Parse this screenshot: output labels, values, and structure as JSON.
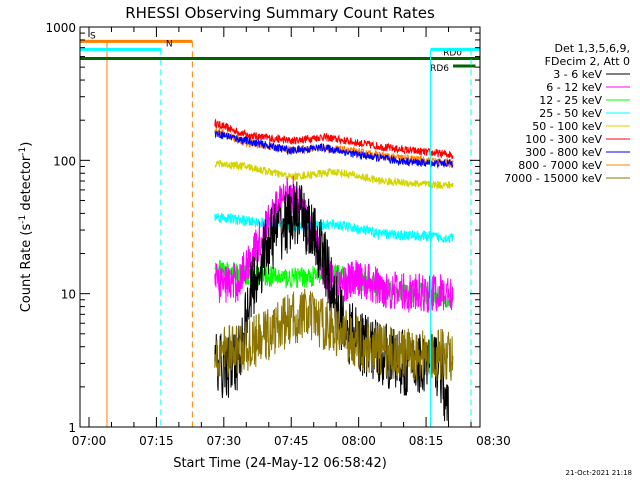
{
  "chart_data": {
    "type": "line",
    "title": "RHESSI Observing Summary Count Rates",
    "xlabel": "Start Time (24-May-12 06:58:42)",
    "ylabel": "Count Rate (s⁻¹ detector⁻¹)",
    "ylabel_main": "Count Rate (s",
    "ylabel_sup1": "-1",
    "ylabel_mid": " detector",
    "ylabel_sup2": "-1",
    "ylabel_end": ")",
    "y_scale": "log",
    "ylim": [
      1,
      1000
    ],
    "y_ticks": [
      1,
      10,
      100,
      1000
    ],
    "y_tick_labels": [
      "1",
      "10",
      "100",
      "1000"
    ],
    "xlim_min": [
      -2,
      87
    ],
    "x_ticks_min": [
      0,
      15,
      30,
      45,
      60,
      75,
      90
    ],
    "x_tick_labels": [
      "07:00",
      "07:15",
      "07:30",
      "07:45",
      "08:00",
      "08:15",
      "08:30"
    ],
    "timestamp": "21-Oct-2021 21:18",
    "legend": {
      "header1": "Det 1,3,5,6,9,",
      "header2": "FDecim 2, Att 0",
      "placement": "right"
    },
    "series": [
      {
        "name": "3 - 6 keV",
        "color": "#000000"
      },
      {
        "name": "6 - 12 keV",
        "color": "#ff00ff"
      },
      {
        "name": "12 - 25 keV",
        "color": "#00ff00"
      },
      {
        "name": "25 - 50 keV",
        "color": "#00ffff"
      },
      {
        "name": "50 - 100 keV",
        "color": "#d4d400"
      },
      {
        "name": "100 - 300 keV",
        "color": "#ff0000"
      },
      {
        "name": "300 - 800 keV",
        "color": "#0000ff"
      },
      {
        "name": "800 - 7000 keV",
        "color": "#ff8000"
      },
      {
        "name": "7000 - 15000 keV",
        "color": "#8b7500"
      }
    ],
    "curves": [
      {
        "color": "#ff0000",
        "noise": 0.03,
        "x": [
          28,
          35,
          45,
          52,
          60,
          68,
          75,
          81
        ],
        "y": [
          190,
          155,
          140,
          150,
          135,
          122,
          115,
          110
        ]
      },
      {
        "color": "#ff8000",
        "noise": 0.03,
        "x": [
          28,
          35,
          45,
          52,
          60,
          68,
          75,
          81
        ],
        "y": [
          170,
          135,
          120,
          125,
          115,
          105,
          100,
          95
        ]
      },
      {
        "color": "#0000ff",
        "noise": 0.03,
        "x": [
          28,
          35,
          45,
          52,
          60,
          68,
          75,
          81
        ],
        "y": [
          160,
          140,
          118,
          125,
          110,
          100,
          95,
          95
        ]
      },
      {
        "color": "#d4d400",
        "noise": 0.03,
        "x": [
          28,
          35,
          45,
          55,
          65,
          75,
          81
        ],
        "y": [
          95,
          90,
          75,
          82,
          70,
          66,
          65
        ]
      },
      {
        "color": "#00ffff",
        "noise": 0.04,
        "x": [
          28,
          35,
          45,
          55,
          65,
          75,
          81
        ],
        "y": [
          38,
          35,
          32,
          33,
          28,
          27,
          26
        ]
      },
      {
        "color": "#00ff00",
        "noise": 0.08,
        "x": [
          28,
          35,
          45,
          55,
          65,
          75,
          81
        ],
        "y": [
          15,
          14,
          13,
          14,
          11,
          10,
          9
        ]
      },
      {
        "color": "#ff00ff",
        "noise": 0.15,
        "x": [
          28,
          33,
          38,
          42,
          45,
          47,
          50,
          53,
          56,
          60,
          65,
          72,
          81
        ],
        "y": [
          12,
          12,
          25,
          45,
          60,
          45,
          25,
          13,
          12,
          13,
          11,
          10,
          10
        ]
      },
      {
        "color": "#000000",
        "noise": 0.25,
        "x": [
          28,
          33,
          36,
          40,
          44,
          46,
          48,
          52,
          55,
          58,
          62,
          70,
          78,
          80
        ],
        "y": [
          2.8,
          3,
          10,
          25,
          35,
          40,
          35,
          20,
          8,
          5,
          4,
          3,
          3,
          1.1
        ]
      },
      {
        "color": "#8b7500",
        "noise": 0.2,
        "x": [
          28,
          35,
          40,
          45,
          48,
          52,
          56,
          62,
          70,
          81
        ],
        "y": [
          3.5,
          4,
          5,
          6.5,
          7,
          6,
          5,
          4,
          3.5,
          3.5
        ]
      }
    ],
    "attenuator_bars": [
      {
        "label": "S",
        "color": "#ff8000",
        "x_start": -2,
        "x_end": 23,
        "y": 780,
        "vlines": [
          4,
          23
        ],
        "vdash": [
          false,
          true
        ]
      },
      {
        "label": "N",
        "color": "#00ffff",
        "x_start": -2,
        "x_end": 16,
        "y": 680,
        "vlines": [
          16
        ],
        "vdash": [
          true
        ]
      },
      {
        "label": "RD0",
        "color": "#006400",
        "x_start": -2,
        "x_end": 87,
        "y": 580,
        "vlines": [],
        "vdash": []
      },
      {
        "label": "RD6",
        "color": "#006400",
        "x_start": 81,
        "x_end": 86,
        "y": 510,
        "vlines": [],
        "vdash": []
      },
      {
        "label": "",
        "color": "#00ffff",
        "x_start": 76,
        "x_end": 87,
        "y": 680,
        "vlines": [
          76,
          85
        ],
        "vdash": [
          false,
          true
        ]
      }
    ]
  }
}
